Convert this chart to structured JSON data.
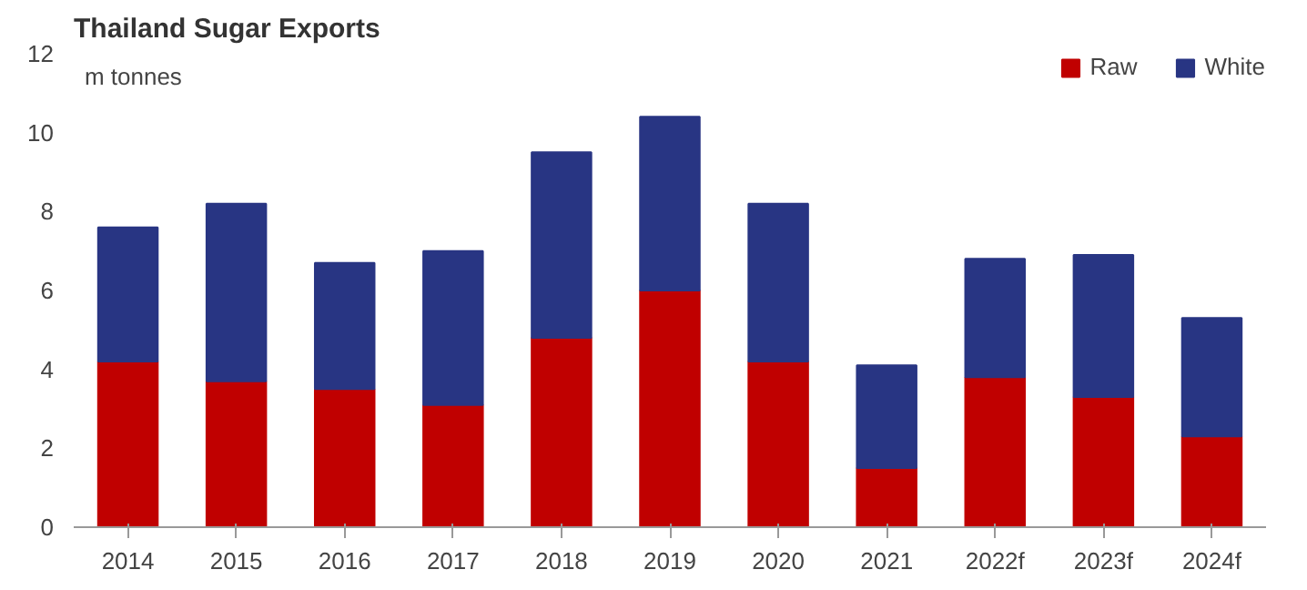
{
  "chart_data": {
    "type": "bar",
    "title": "Thailand Sugar Exports",
    "ylabel": "m tonnes",
    "stacked": true,
    "categories": [
      "2014",
      "2015",
      "2016",
      "2017",
      "2018",
      "2019",
      "2020",
      "2021",
      "2022f",
      "2023f",
      "2024f"
    ],
    "series": [
      {
        "name": "Raw",
        "color": "#c00000",
        "values": [
          4.2,
          3.7,
          3.5,
          3.1,
          4.8,
          6.0,
          4.2,
          1.5,
          3.8,
          3.3,
          2.3
        ]
      },
      {
        "name": "White",
        "color": "#283583",
        "values": [
          3.4,
          4.5,
          3.2,
          3.9,
          4.7,
          4.4,
          4.0,
          2.6,
          3.0,
          3.6,
          3.0
        ]
      }
    ],
    "ylim": [
      0,
      12
    ],
    "yticks": [
      0,
      2,
      4,
      6,
      8,
      10,
      12
    ],
    "grid": false,
    "legend": "top right"
  }
}
